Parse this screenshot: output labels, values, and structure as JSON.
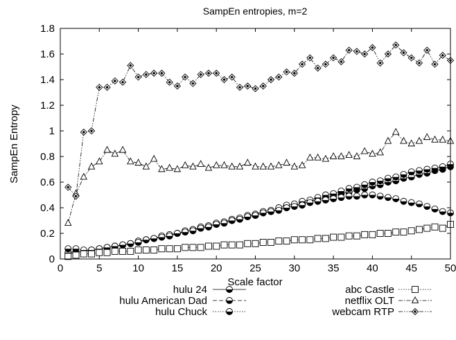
{
  "chart_data": {
    "type": "line",
    "title": "SampEn entropies, m=2",
    "xlabel": "Scale factor",
    "ylabel": "SampEn Entropy",
    "xlim": [
      0,
      50
    ],
    "ylim": [
      0,
      1.8
    ],
    "xticks": [
      0,
      5,
      10,
      15,
      20,
      25,
      30,
      35,
      40,
      45,
      50
    ],
    "yticks": [
      0,
      0.2,
      0.4,
      0.6,
      0.8,
      1,
      1.2,
      1.4,
      1.6,
      1.8
    ],
    "xtick_labels": [
      "0",
      "5",
      "10",
      "15",
      "20",
      "25",
      "30",
      "35",
      "40",
      "45",
      "50"
    ],
    "ytick_labels": [
      "0",
      "0.2",
      "0.4",
      "0.6",
      "0.8",
      "1",
      "1.2",
      "1.4",
      "1.6",
      "1.8"
    ],
    "grid": false,
    "legend_position": "bottom",
    "x": [
      1,
      2,
      3,
      4,
      5,
      6,
      7,
      8,
      9,
      10,
      11,
      12,
      13,
      14,
      15,
      16,
      17,
      18,
      19,
      20,
      21,
      22,
      23,
      24,
      25,
      26,
      27,
      28,
      29,
      30,
      31,
      32,
      33,
      34,
      35,
      36,
      37,
      38,
      39,
      40,
      41,
      42,
      43,
      44,
      45,
      46,
      47,
      48,
      49,
      50
    ],
    "series": [
      {
        "name": "hulu 24",
        "marker": "half-filled-circle",
        "dash": "solid",
        "values": [
          0.04,
          0.05,
          0.06,
          0.07,
          0.08,
          0.09,
          0.1,
          0.11,
          0.12,
          0.13,
          0.15,
          0.16,
          0.17,
          0.18,
          0.2,
          0.21,
          0.23,
          0.24,
          0.25,
          0.27,
          0.28,
          0.3,
          0.31,
          0.33,
          0.34,
          0.36,
          0.37,
          0.39,
          0.4,
          0.42,
          0.43,
          0.45,
          0.46,
          0.48,
          0.49,
          0.51,
          0.52,
          0.54,
          0.55,
          0.57,
          0.58,
          0.6,
          0.61,
          0.63,
          0.64,
          0.66,
          0.67,
          0.69,
          0.7,
          0.72
        ]
      },
      {
        "name": "hulu American Dad",
        "marker": "half-filled-circle",
        "dash": "dashed",
        "values": [
          0.05,
          0.06,
          0.06,
          0.07,
          0.08,
          0.09,
          0.1,
          0.11,
          0.12,
          0.14,
          0.15,
          0.16,
          0.18,
          0.19,
          0.2,
          0.22,
          0.23,
          0.25,
          0.26,
          0.28,
          0.29,
          0.31,
          0.32,
          0.34,
          0.35,
          0.37,
          0.38,
          0.4,
          0.42,
          0.43,
          0.45,
          0.46,
          0.48,
          0.5,
          0.51,
          0.53,
          0.55,
          0.56,
          0.58,
          0.6,
          0.61,
          0.63,
          0.64,
          0.66,
          0.68,
          0.69,
          0.7,
          0.71,
          0.72,
          0.74
        ]
      },
      {
        "name": "hulu Chuck",
        "marker": "half-filled-circle",
        "dash": "dotted",
        "values": [
          0.08,
          0.08,
          0.07,
          0.07,
          0.08,
          0.09,
          0.1,
          0.11,
          0.12,
          0.13,
          0.15,
          0.16,
          0.17,
          0.18,
          0.2,
          0.21,
          0.22,
          0.24,
          0.25,
          0.27,
          0.28,
          0.3,
          0.31,
          0.33,
          0.34,
          0.36,
          0.37,
          0.38,
          0.4,
          0.41,
          0.42,
          0.44,
          0.45,
          0.46,
          0.47,
          0.48,
          0.49,
          0.49,
          0.5,
          0.5,
          0.49,
          0.48,
          0.47,
          0.45,
          0.44,
          0.43,
          0.41,
          0.39,
          0.37,
          0.36
        ]
      },
      {
        "name": "abc Castle",
        "marker": "square",
        "dash": "dotted",
        "values": [
          0.02,
          0.03,
          0.04,
          0.04,
          0.05,
          0.05,
          0.06,
          0.06,
          0.06,
          0.07,
          0.07,
          0.07,
          0.08,
          0.08,
          0.08,
          0.09,
          0.09,
          0.09,
          0.1,
          0.1,
          0.11,
          0.11,
          0.11,
          0.12,
          0.12,
          0.13,
          0.13,
          0.14,
          0.14,
          0.15,
          0.15,
          0.15,
          0.16,
          0.16,
          0.17,
          0.17,
          0.18,
          0.18,
          0.19,
          0.19,
          0.2,
          0.2,
          0.21,
          0.21,
          0.22,
          0.23,
          0.24,
          0.25,
          0.24,
          0.27
        ]
      },
      {
        "name": "netflix OLT",
        "marker": "triangle",
        "dash": "dashdot",
        "values": [
          0.28,
          0.51,
          0.64,
          0.72,
          0.76,
          0.85,
          0.82,
          0.85,
          0.76,
          0.75,
          0.72,
          0.78,
          0.7,
          0.71,
          0.7,
          0.73,
          0.72,
          0.74,
          0.71,
          0.73,
          0.73,
          0.72,
          0.72,
          0.75,
          0.72,
          0.72,
          0.72,
          0.73,
          0.75,
          0.72,
          0.73,
          0.79,
          0.79,
          0.78,
          0.8,
          0.8,
          0.81,
          0.8,
          0.84,
          0.82,
          0.83,
          0.92,
          0.99,
          0.92,
          0.9,
          0.92,
          0.95,
          0.93,
          0.93,
          0.92
        ]
      },
      {
        "name": "webcam RTP",
        "marker": "diamond",
        "dash": "dashdotdot",
        "values": [
          0.56,
          0.49,
          0.99,
          1.0,
          1.34,
          1.34,
          1.39,
          1.38,
          1.51,
          1.42,
          1.44,
          1.45,
          1.45,
          1.38,
          1.35,
          1.42,
          1.37,
          1.44,
          1.45,
          1.45,
          1.4,
          1.42,
          1.34,
          1.35,
          1.33,
          1.35,
          1.4,
          1.42,
          1.46,
          1.45,
          1.52,
          1.57,
          1.49,
          1.52,
          1.57,
          1.54,
          1.63,
          1.62,
          1.6,
          1.65,
          1.53,
          1.6,
          1.67,
          1.61,
          1.57,
          1.53,
          1.63,
          1.52,
          1.59,
          1.55
        ]
      }
    ],
    "legend": [
      {
        "label": "hulu 24",
        "series": 0
      },
      {
        "label": "hulu American Dad",
        "series": 1
      },
      {
        "label": "hulu Chuck",
        "series": 2
      },
      {
        "label": "abc Castle",
        "series": 3
      },
      {
        "label": "netflix OLT",
        "series": 4
      },
      {
        "label": "webcam RTP",
        "series": 5
      }
    ]
  }
}
